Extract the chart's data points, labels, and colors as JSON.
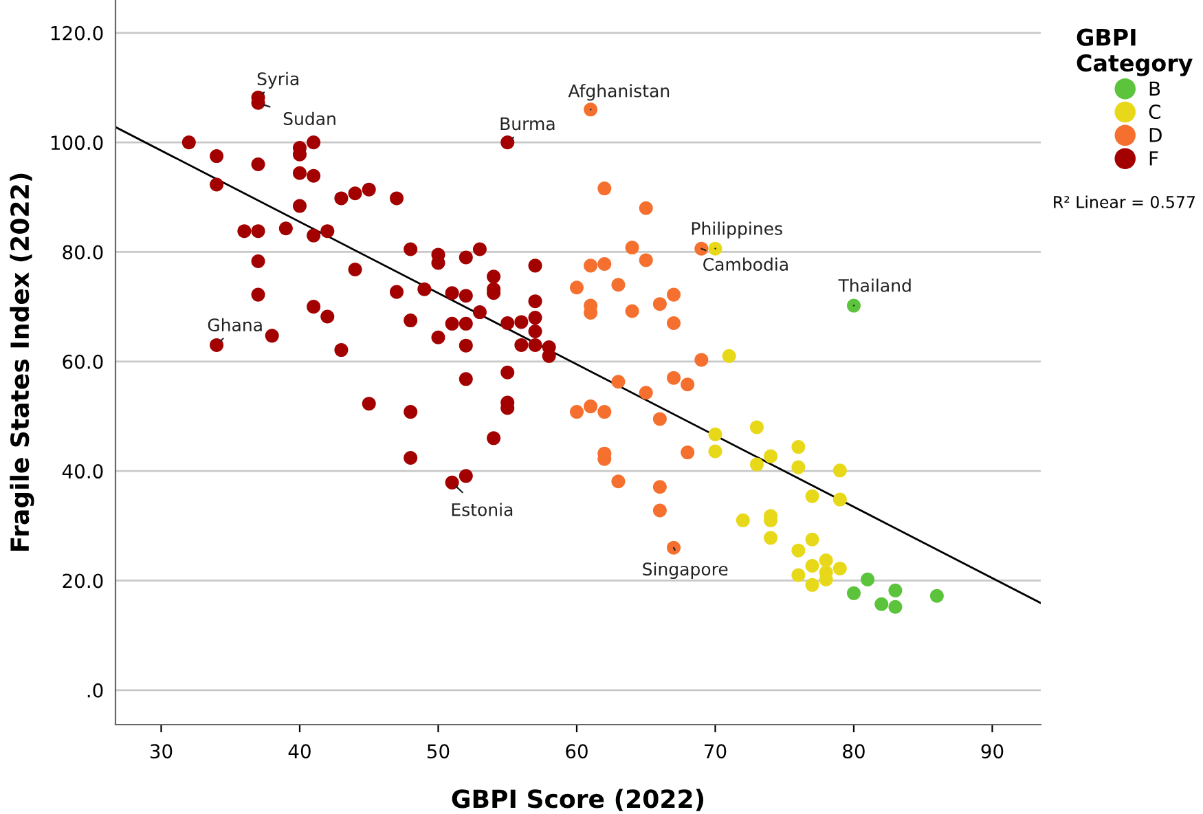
{
  "chart_data": {
    "type": "scatter",
    "xlabel": "GBPI Score (2022)",
    "ylabel": "Fragile States Index (2022)",
    "legend_title": "GBPI Category",
    "xlim": [
      26.7,
      93.5
    ],
    "ylim": [
      -6.3,
      126
    ],
    "xticks": [
      30,
      40,
      50,
      60,
      70,
      80,
      90
    ],
    "yticks": [
      {
        "value": 0,
        "label": ".0"
      },
      {
        "value": 20,
        "label": "20.0"
      },
      {
        "value": 40,
        "label": "40.0"
      },
      {
        "value": 60,
        "label": "60.0"
      },
      {
        "value": 80,
        "label": "80.0"
      },
      {
        "value": 100,
        "label": "100.0"
      },
      {
        "value": 120,
        "label": "120.0"
      }
    ],
    "grid": "y",
    "legend": "right",
    "marker": "circle",
    "series": [
      {
        "name": "B",
        "color": "#5cc33c",
        "x": [
          80,
          81,
          80,
          83,
          82,
          83,
          86
        ],
        "values": [
          70.2,
          20.2,
          17.7,
          18.2,
          15.7,
          15.2,
          17.2
        ]
      },
      {
        "name": "C",
        "color": "#e8d81a",
        "x": [
          70,
          71,
          70,
          70,
          73,
          74,
          73,
          76,
          76,
          79,
          77,
          79,
          72,
          74,
          74,
          74,
          77,
          76,
          77,
          78,
          78,
          78,
          79,
          76,
          77
        ],
        "values": [
          80.6,
          61,
          46.7,
          43.6,
          48,
          42.7,
          41.2,
          44.4,
          40.7,
          40.1,
          35.4,
          34.8,
          31,
          31.8,
          31,
          27.8,
          27.5,
          25.5,
          22.7,
          23.7,
          21.5,
          20.2,
          22.2,
          21,
          19.2
        ]
      },
      {
        "name": "D",
        "color": "#f5702f",
        "x": [
          61,
          62,
          65,
          64,
          65,
          61,
          62,
          69,
          60,
          63,
          61,
          61,
          64,
          66,
          67,
          67,
          69,
          63,
          65,
          67,
          68,
          60,
          61,
          62,
          66,
          62,
          62,
          68,
          63,
          66,
          66,
          67
        ],
        "values": [
          106,
          91.6,
          88,
          80.8,
          78.5,
          77.5,
          77.8,
          80.6,
          73.5,
          74,
          70.2,
          68.9,
          69.2,
          70.5,
          72.2,
          67,
          60.3,
          56.3,
          54.3,
          57,
          55.8,
          50.8,
          51.8,
          50.8,
          49.5,
          43.2,
          42.2,
          43.4,
          38.1,
          37.1,
          32.8,
          26
        ]
      },
      {
        "name": "F",
        "color": "#a30000",
        "x": [
          32,
          34,
          34,
          37,
          37,
          37,
          36,
          37,
          37,
          37,
          34,
          38,
          39,
          40,
          40,
          41,
          40,
          41,
          40,
          41,
          42,
          43,
          44,
          45,
          47,
          44,
          41,
          42,
          43,
          45,
          47,
          48,
          48,
          48,
          48,
          49,
          50,
          50,
          50,
          51,
          51,
          51,
          52,
          52,
          52,
          52,
          52,
          52,
          53,
          53,
          54,
          54,
          54,
          54,
          55,
          55,
          55,
          55,
          55,
          56,
          56,
          57,
          57,
          57,
          57,
          57,
          58,
          58
        ],
        "values": [
          100,
          97.5,
          92.3,
          108.2,
          107.2,
          96,
          83.8,
          83.8,
          78.3,
          72.2,
          63,
          64.7,
          84.3,
          99,
          97.8,
          100,
          94.4,
          93.9,
          88.4,
          83,
          83.8,
          89.8,
          90.7,
          91.4,
          89.8,
          76.8,
          70,
          68.2,
          62.1,
          52.3,
          72.7,
          80.5,
          67.5,
          50.8,
          42.4,
          73.2,
          79.5,
          78,
          64.4,
          72.5,
          66.9,
          37.9,
          79,
          72,
          66.9,
          62.9,
          56.8,
          39.1,
          80.5,
          69,
          75.5,
          73.2,
          72.5,
          46,
          100,
          67,
          58,
          52.5,
          51.5,
          67.2,
          63,
          77.5,
          71,
          68,
          65.5,
          63,
          62.6,
          61
        ]
      },
      {
        "type": "line",
        "marker": "none",
        "color": "#000000",
        "x": [
          26.7,
          93.5
        ],
        "values": [
          102.8,
          15.9
        ]
      }
    ],
    "annotations": [
      {
        "text": "Syria",
        "x": 37,
        "y": 108.2
      },
      {
        "text": "Sudan",
        "x": 37,
        "y": 107.2
      },
      {
        "text": "Burma",
        "x": 55,
        "y": 100
      },
      {
        "text": "Afghanistan",
        "x": 61,
        "y": 106
      },
      {
        "text": "Philippines",
        "x": 70,
        "y": 80.6
      },
      {
        "text": "Cambodia",
        "x": 69,
        "y": 80.6
      },
      {
        "text": "Thailand",
        "x": 80,
        "y": 70.2
      },
      {
        "text": "Ghana",
        "x": 34,
        "y": 63
      },
      {
        "text": "Estonia",
        "x": 51,
        "y": 37.9
      },
      {
        "text": "Singapore",
        "x": 67,
        "y": 26
      },
      "R² Linear = 0.577"
    ]
  }
}
